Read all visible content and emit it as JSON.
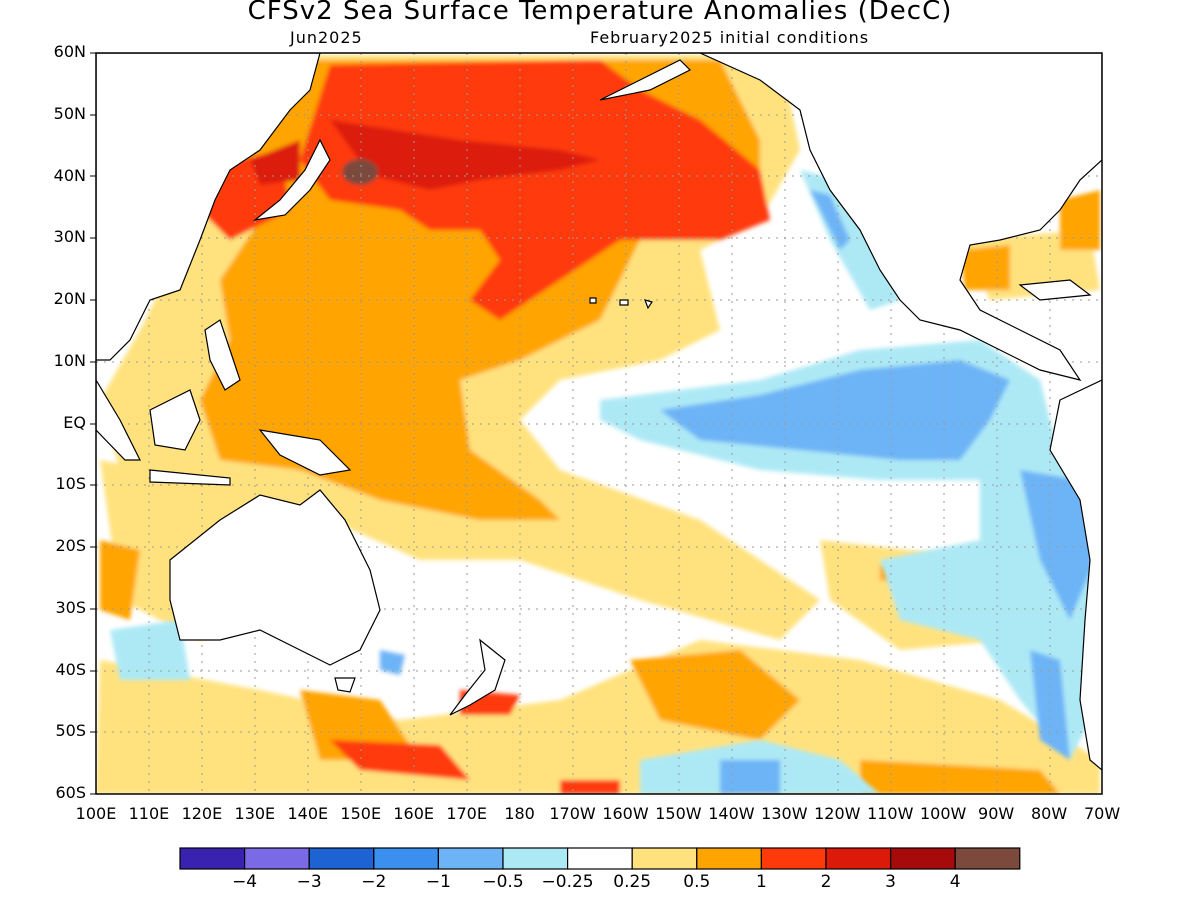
{
  "title": "CFSv2 Sea Surface Temperature Anomalies (DecC)",
  "subtitle_left": "Jun2025",
  "subtitle_right": "February2025 initial conditions",
  "lat_labels": [
    "60N",
    "50N",
    "40N",
    "30N",
    "20N",
    "10N",
    "EQ",
    "10S",
    "20S",
    "30S",
    "40S",
    "50S",
    "60S"
  ],
  "lon_labels": [
    "100E",
    "110E",
    "120E",
    "130E",
    "140E",
    "150E",
    "160E",
    "170E",
    "180",
    "170W",
    "160W",
    "150W",
    "140W",
    "130W",
    "120W",
    "110W",
    "100W",
    "90W",
    "80W",
    "70W"
  ],
  "colorbar": {
    "colors": [
      "#3a22b0",
      "#7a6ae6",
      "#1e63d3",
      "#3b90ef",
      "#6db4f7",
      "#ade9f5",
      "#ffffff",
      "#ffe27e",
      "#ffa400",
      "#ff3a0a",
      "#dc1a0a",
      "#a60a0a",
      "#7c4a3c"
    ],
    "labels": [
      "-4",
      "-3",
      "-2",
      "-1",
      "-0.5",
      "-0.25",
      "0.25",
      "0.5",
      "1",
      "2",
      "3",
      "4"
    ]
  },
  "legend_colors": {
    "land": "#ffffff",
    "coast": "#000000",
    "grid": "#9a9a9a"
  }
}
